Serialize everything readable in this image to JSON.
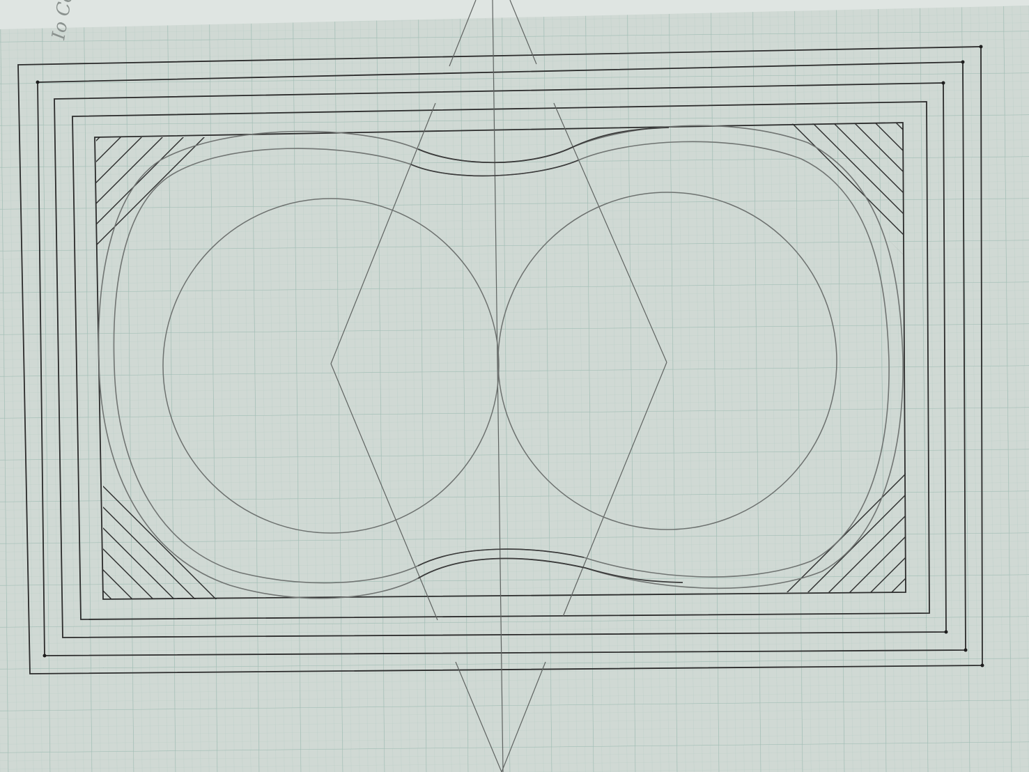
{
  "drawing": {
    "corner_note": "Io Co",
    "paper_color": "#d0d9d4",
    "grid_color": "#a9c4bc",
    "ink_color": "#2b2b2b",
    "pencil_color": "#6d716f"
  }
}
